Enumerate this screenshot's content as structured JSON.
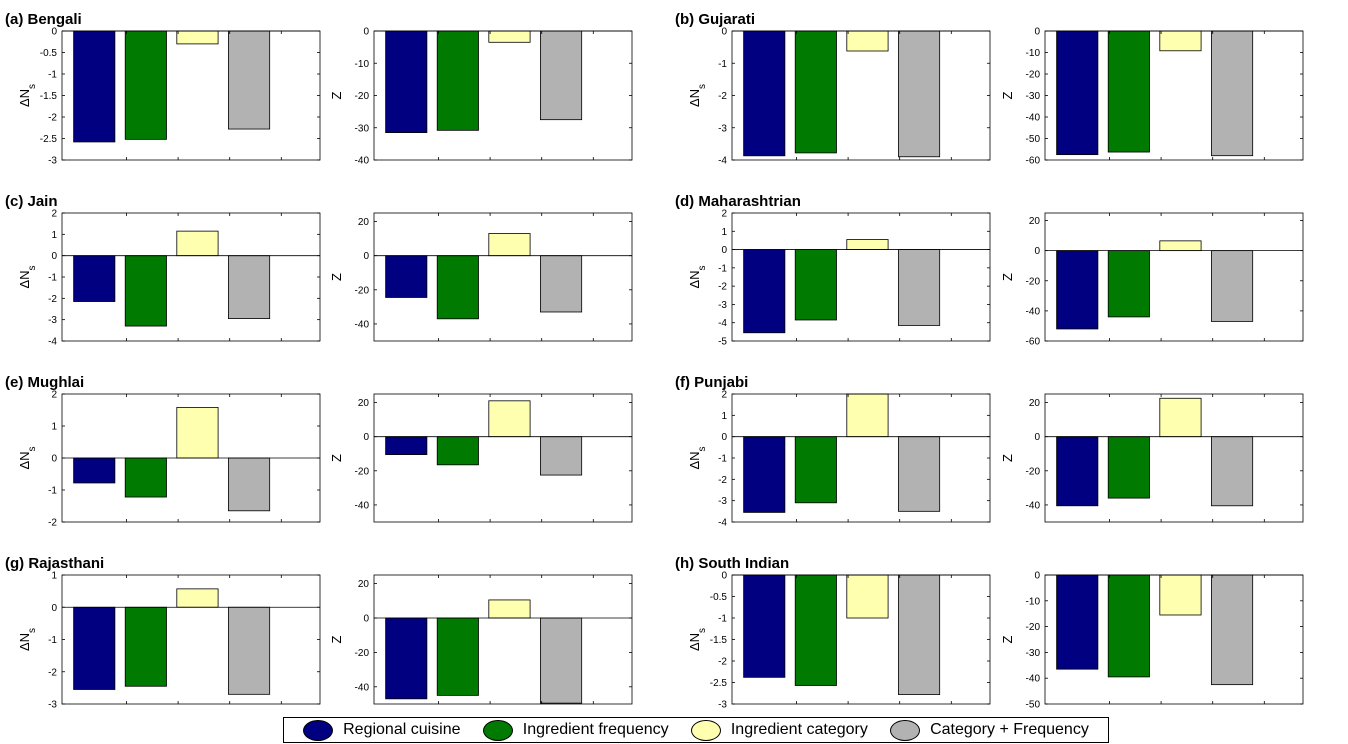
{
  "colors": {
    "regional": "#000080",
    "frequency": "#007a00",
    "category": "#ffffb0",
    "combined": "#b2b2b2"
  },
  "legend": [
    {
      "label": "Regional cuisine",
      "color": "#000080"
    },
    {
      "label": "Ingredient frequency",
      "color": "#007a00"
    },
    {
      "label": "Ingredient category",
      "color": "#ffffb0"
    },
    {
      "label": "Category + Frequency",
      "color": "#b2b2b2"
    }
  ],
  "chart_data": [
    {
      "type": "bar",
      "title": "(a) Bengali",
      "ylabel": "ΔN_s",
      "ylim": [
        -3,
        0
      ],
      "yticks": [
        0,
        -0.5,
        -1,
        -1.5,
        -2,
        -2.5,
        -3
      ],
      "ytick_labels": [
        "0",
        "-0.5",
        "-1",
        "-1.5",
        "-2",
        "-2.5",
        "-3"
      ],
      "values": [
        -2.58,
        -2.52,
        -0.3,
        -2.28
      ]
    },
    {
      "type": "bar",
      "title": "",
      "ylabel": "Z",
      "ylim": [
        -40,
        0
      ],
      "yticks": [
        0,
        -10,
        -20,
        -30,
        -40
      ],
      "ytick_labels": [
        "0",
        "-10",
        "-20",
        "-30",
        "-40"
      ],
      "values": [
        -31.5,
        -30.8,
        -3.5,
        -27.5
      ]
    },
    {
      "type": "bar",
      "title": "(b) Gujarati",
      "ylabel": "ΔN_s",
      "ylim": [
        -4,
        0
      ],
      "yticks": [
        0,
        -1,
        -2,
        -3,
        -4
      ],
      "ytick_labels": [
        "0",
        "-1",
        "-2",
        "-3",
        "-4"
      ],
      "values": [
        -3.87,
        -3.78,
        -0.62,
        -3.9
      ]
    },
    {
      "type": "bar",
      "title": "",
      "ylabel": "Z",
      "ylim": [
        -60,
        0
      ],
      "yticks": [
        0,
        -10,
        -20,
        -30,
        -40,
        -50,
        -60
      ],
      "ytick_labels": [
        "0",
        "-10",
        "-20",
        "-30",
        "-40",
        "-50",
        "-60"
      ],
      "values": [
        -57.5,
        -56.3,
        -9.2,
        -58
      ]
    },
    {
      "type": "bar",
      "title": "(c) Jain",
      "ylabel": "ΔN_s",
      "ylim": [
        -4,
        2
      ],
      "yticks": [
        2,
        1,
        0,
        -1,
        -2,
        -3,
        -4
      ],
      "ytick_labels": [
        "2",
        "1",
        "0",
        "-1",
        "-2",
        "-3",
        "-4"
      ],
      "values": [
        -2.15,
        -3.3,
        1.15,
        -2.95
      ]
    },
    {
      "type": "bar",
      "title": "",
      "ylabel": "Z",
      "ylim": [
        -50,
        25
      ],
      "yticks": [
        20,
        0,
        -20,
        -40
      ],
      "ytick_labels": [
        "20",
        "0",
        "-20",
        "-40"
      ],
      "values": [
        -24.5,
        -37,
        13,
        -33
      ]
    },
    {
      "type": "bar",
      "title": "(d) Maharashtrian",
      "ylabel": "ΔN_s",
      "ylim": [
        -5,
        2
      ],
      "yticks": [
        2,
        1,
        0,
        -1,
        -2,
        -3,
        -4,
        -5
      ],
      "ytick_labels": [
        "2",
        "1",
        "0",
        "-1",
        "-2",
        "-3",
        "-4",
        "-5"
      ],
      "values": [
        -4.55,
        -3.85,
        0.55,
        -4.15
      ]
    },
    {
      "type": "bar",
      "title": "",
      "ylabel": "Z",
      "ylim": [
        -60,
        25
      ],
      "yticks": [
        20,
        0,
        -20,
        -40,
        -60
      ],
      "ytick_labels": [
        "20",
        "0",
        "-20",
        "-40",
        "-60"
      ],
      "values": [
        -52,
        -44,
        6.5,
        -47
      ]
    },
    {
      "type": "bar",
      "title": "(e) Mughlai",
      "ylabel": "ΔN_s",
      "ylim": [
        -2,
        2
      ],
      "yticks": [
        2,
        1,
        0,
        -1,
        -2
      ],
      "ytick_labels": [
        "2",
        "1",
        "0",
        "-1",
        "-2"
      ],
      "values": [
        -0.78,
        -1.22,
        1.58,
        -1.65
      ]
    },
    {
      "type": "bar",
      "title": "",
      "ylabel": "Z",
      "ylim": [
        -50,
        25
      ],
      "yticks": [
        20,
        0,
        -20,
        -40
      ],
      "ytick_labels": [
        "20",
        "0",
        "-20",
        "-40"
      ],
      "values": [
        -10.5,
        -16.5,
        21,
        -22.5
      ]
    },
    {
      "type": "bar",
      "title": "(f) Punjabi",
      "ylabel": "ΔN_s",
      "ylim": [
        -4,
        2
      ],
      "yticks": [
        2,
        1,
        0,
        -1,
        -2,
        -3,
        -4
      ],
      "ytick_labels": [
        "2",
        "1",
        "0",
        "-1",
        "-2",
        "-3",
        "-4"
      ],
      "values": [
        -3.55,
        -3.1,
        2.0,
        -3.5
      ]
    },
    {
      "type": "bar",
      "title": "",
      "ylabel": "Z",
      "ylim": [
        -50,
        25
      ],
      "yticks": [
        20,
        0,
        -20,
        -40
      ],
      "ytick_labels": [
        "20",
        "0",
        "-20",
        "-40"
      ],
      "values": [
        -40.5,
        -36,
        22.5,
        -40.5
      ]
    },
    {
      "type": "bar",
      "title": "(g) Rajasthani",
      "ylabel": "ΔN_s",
      "ylim": [
        -3,
        1
      ],
      "yticks": [
        1,
        0,
        -1,
        -2,
        -3
      ],
      "ytick_labels": [
        "1",
        "0",
        "-1",
        "-2",
        "-3"
      ],
      "values": [
        -2.55,
        -2.45,
        0.57,
        -2.7
      ]
    },
    {
      "type": "bar",
      "title": "",
      "ylabel": "Z",
      "ylim": [
        -50,
        25
      ],
      "yticks": [
        20,
        0,
        -20,
        -40
      ],
      "ytick_labels": [
        "20",
        "0",
        "-20",
        "-40"
      ],
      "values": [
        -47,
        -45,
        10.5,
        -49.5
      ]
    },
    {
      "type": "bar",
      "title": "(h) South Indian",
      "ylabel": "ΔN_s",
      "ylim": [
        -3,
        0
      ],
      "yticks": [
        0,
        -0.5,
        -1,
        -1.5,
        -2,
        -2.5,
        -3
      ],
      "ytick_labels": [
        "0",
        "-0.5",
        "-1",
        "-1.5",
        "-2",
        "-2.5",
        "-3"
      ],
      "values": [
        -2.38,
        -2.57,
        -1.0,
        -2.78
      ]
    },
    {
      "type": "bar",
      "title": "",
      "ylabel": "Z",
      "ylim": [
        -50,
        0
      ],
      "yticks": [
        0,
        -10,
        -20,
        -30,
        -40,
        -50
      ],
      "ytick_labels": [
        "0",
        "-10",
        "-20",
        "-30",
        "-40",
        "-50"
      ],
      "values": [
        -36.5,
        -39.5,
        -15.5,
        -42.5
      ]
    }
  ]
}
